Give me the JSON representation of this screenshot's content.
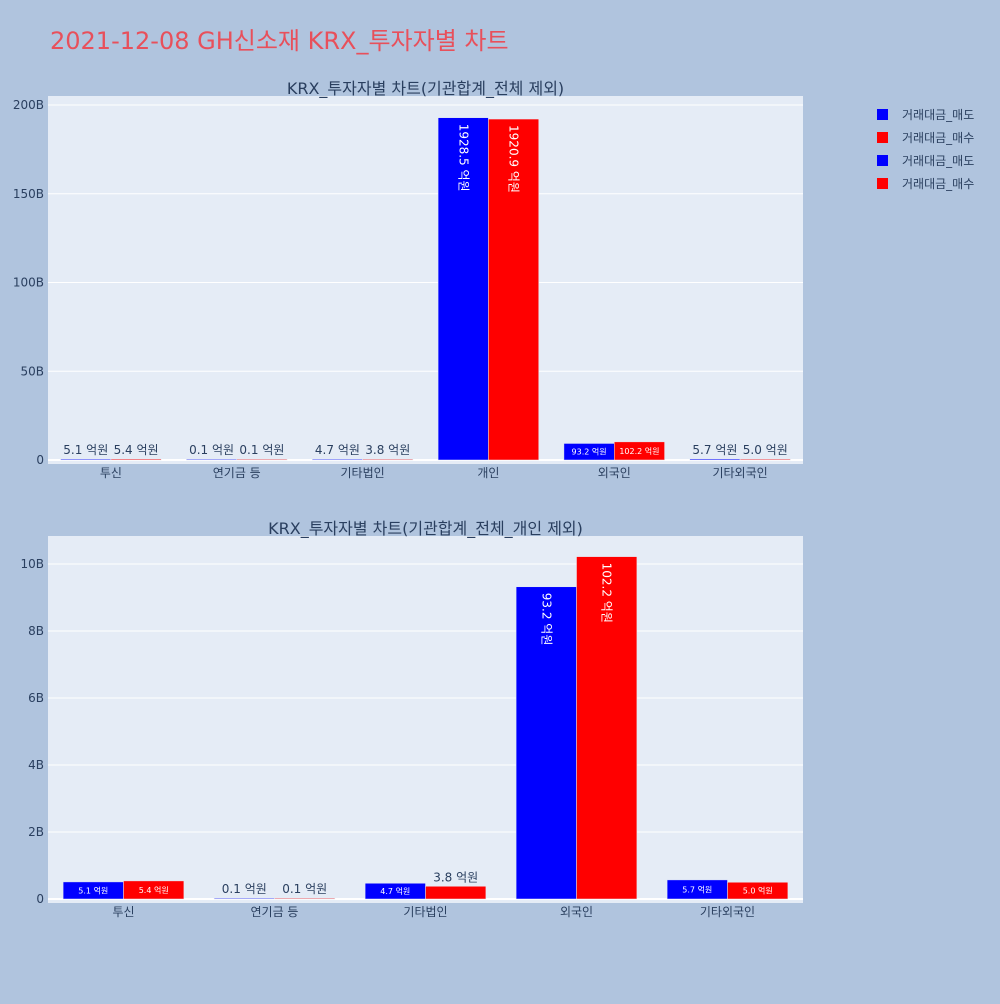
{
  "page": {
    "title": "2021-12-08 GH신소재 KRX_투자자별 차트",
    "title_color": "#e8505b",
    "background": "#b0c4de",
    "plot_background": "#e5ecf6"
  },
  "legend": {
    "placement": "top-right",
    "entries": [
      {
        "name": "거래대금_매도",
        "color": "#0000ff"
      },
      {
        "name": "거래대금_매수",
        "color": "#ff0000"
      },
      {
        "name": "거래대금_매도",
        "color": "#0000ff"
      },
      {
        "name": "거래대금_매수",
        "color": "#ff0000"
      }
    ]
  },
  "chart_data": [
    {
      "type": "bar",
      "title": "KRX_투자자별 차트(기관합계_전체 제외)",
      "categories": [
        "투신",
        "연기금 등",
        "기타법인",
        "개인",
        "외국인",
        "기타외국인"
      ],
      "series": [
        {
          "name": "거래대금_매도",
          "color": "#0000ff",
          "values": [
            510000000,
            10000000,
            470000000,
            192850000000,
            9320000000,
            570000000
          ],
          "labels": [
            "5.1 억원",
            "0.1 억원",
            "4.7 억원",
            "1928.5 억원",
            "93.2 억원",
            "5.7 억원"
          ]
        },
        {
          "name": "거래대금_매수",
          "color": "#ff0000",
          "values": [
            540000000,
            10000000,
            380000000,
            192090000000,
            10220000000,
            500000000
          ],
          "labels": [
            "5.4 억원",
            "0.1 억원",
            "3.8 억원",
            "1920.9 억원",
            "102.2 억원",
            "5.0 억원"
          ]
        }
      ],
      "yaxis": {
        "range": [
          0,
          200000000000
        ],
        "ticks": [
          0,
          50000000000,
          100000000000,
          150000000000,
          200000000000
        ],
        "tick_labels": [
          "0",
          "50B",
          "100B",
          "150B",
          "200B"
        ]
      },
      "grid": true
    },
    {
      "type": "bar",
      "title": "KRX_투자자별 차트(기관합계_전체_개인 제외)",
      "categories": [
        "투신",
        "연기금 등",
        "기타법인",
        "외국인",
        "기타외국인"
      ],
      "series": [
        {
          "name": "거래대금_매도",
          "color": "#0000ff",
          "values": [
            510000000,
            10000000,
            470000000,
            9320000000,
            570000000
          ],
          "labels": [
            "5.1 억원",
            "0.1 억원",
            "4.7 억원",
            "93.2 억원",
            "5.7 억원"
          ]
        },
        {
          "name": "거래대금_매수",
          "color": "#ff0000",
          "values": [
            540000000,
            10000000,
            380000000,
            10220000000,
            500000000
          ],
          "labels": [
            "5.4 억원",
            "0.1 억원",
            "3.8 억원",
            "102.2 억원",
            "5.0 억원"
          ]
        }
      ],
      "yaxis": {
        "range": [
          0,
          10000000000
        ],
        "ticks": [
          0,
          2000000000,
          4000000000,
          6000000000,
          8000000000,
          10000000000
        ],
        "tick_labels": [
          "0",
          "2B",
          "4B",
          "6B",
          "8B",
          "10B"
        ]
      },
      "grid": true
    }
  ]
}
